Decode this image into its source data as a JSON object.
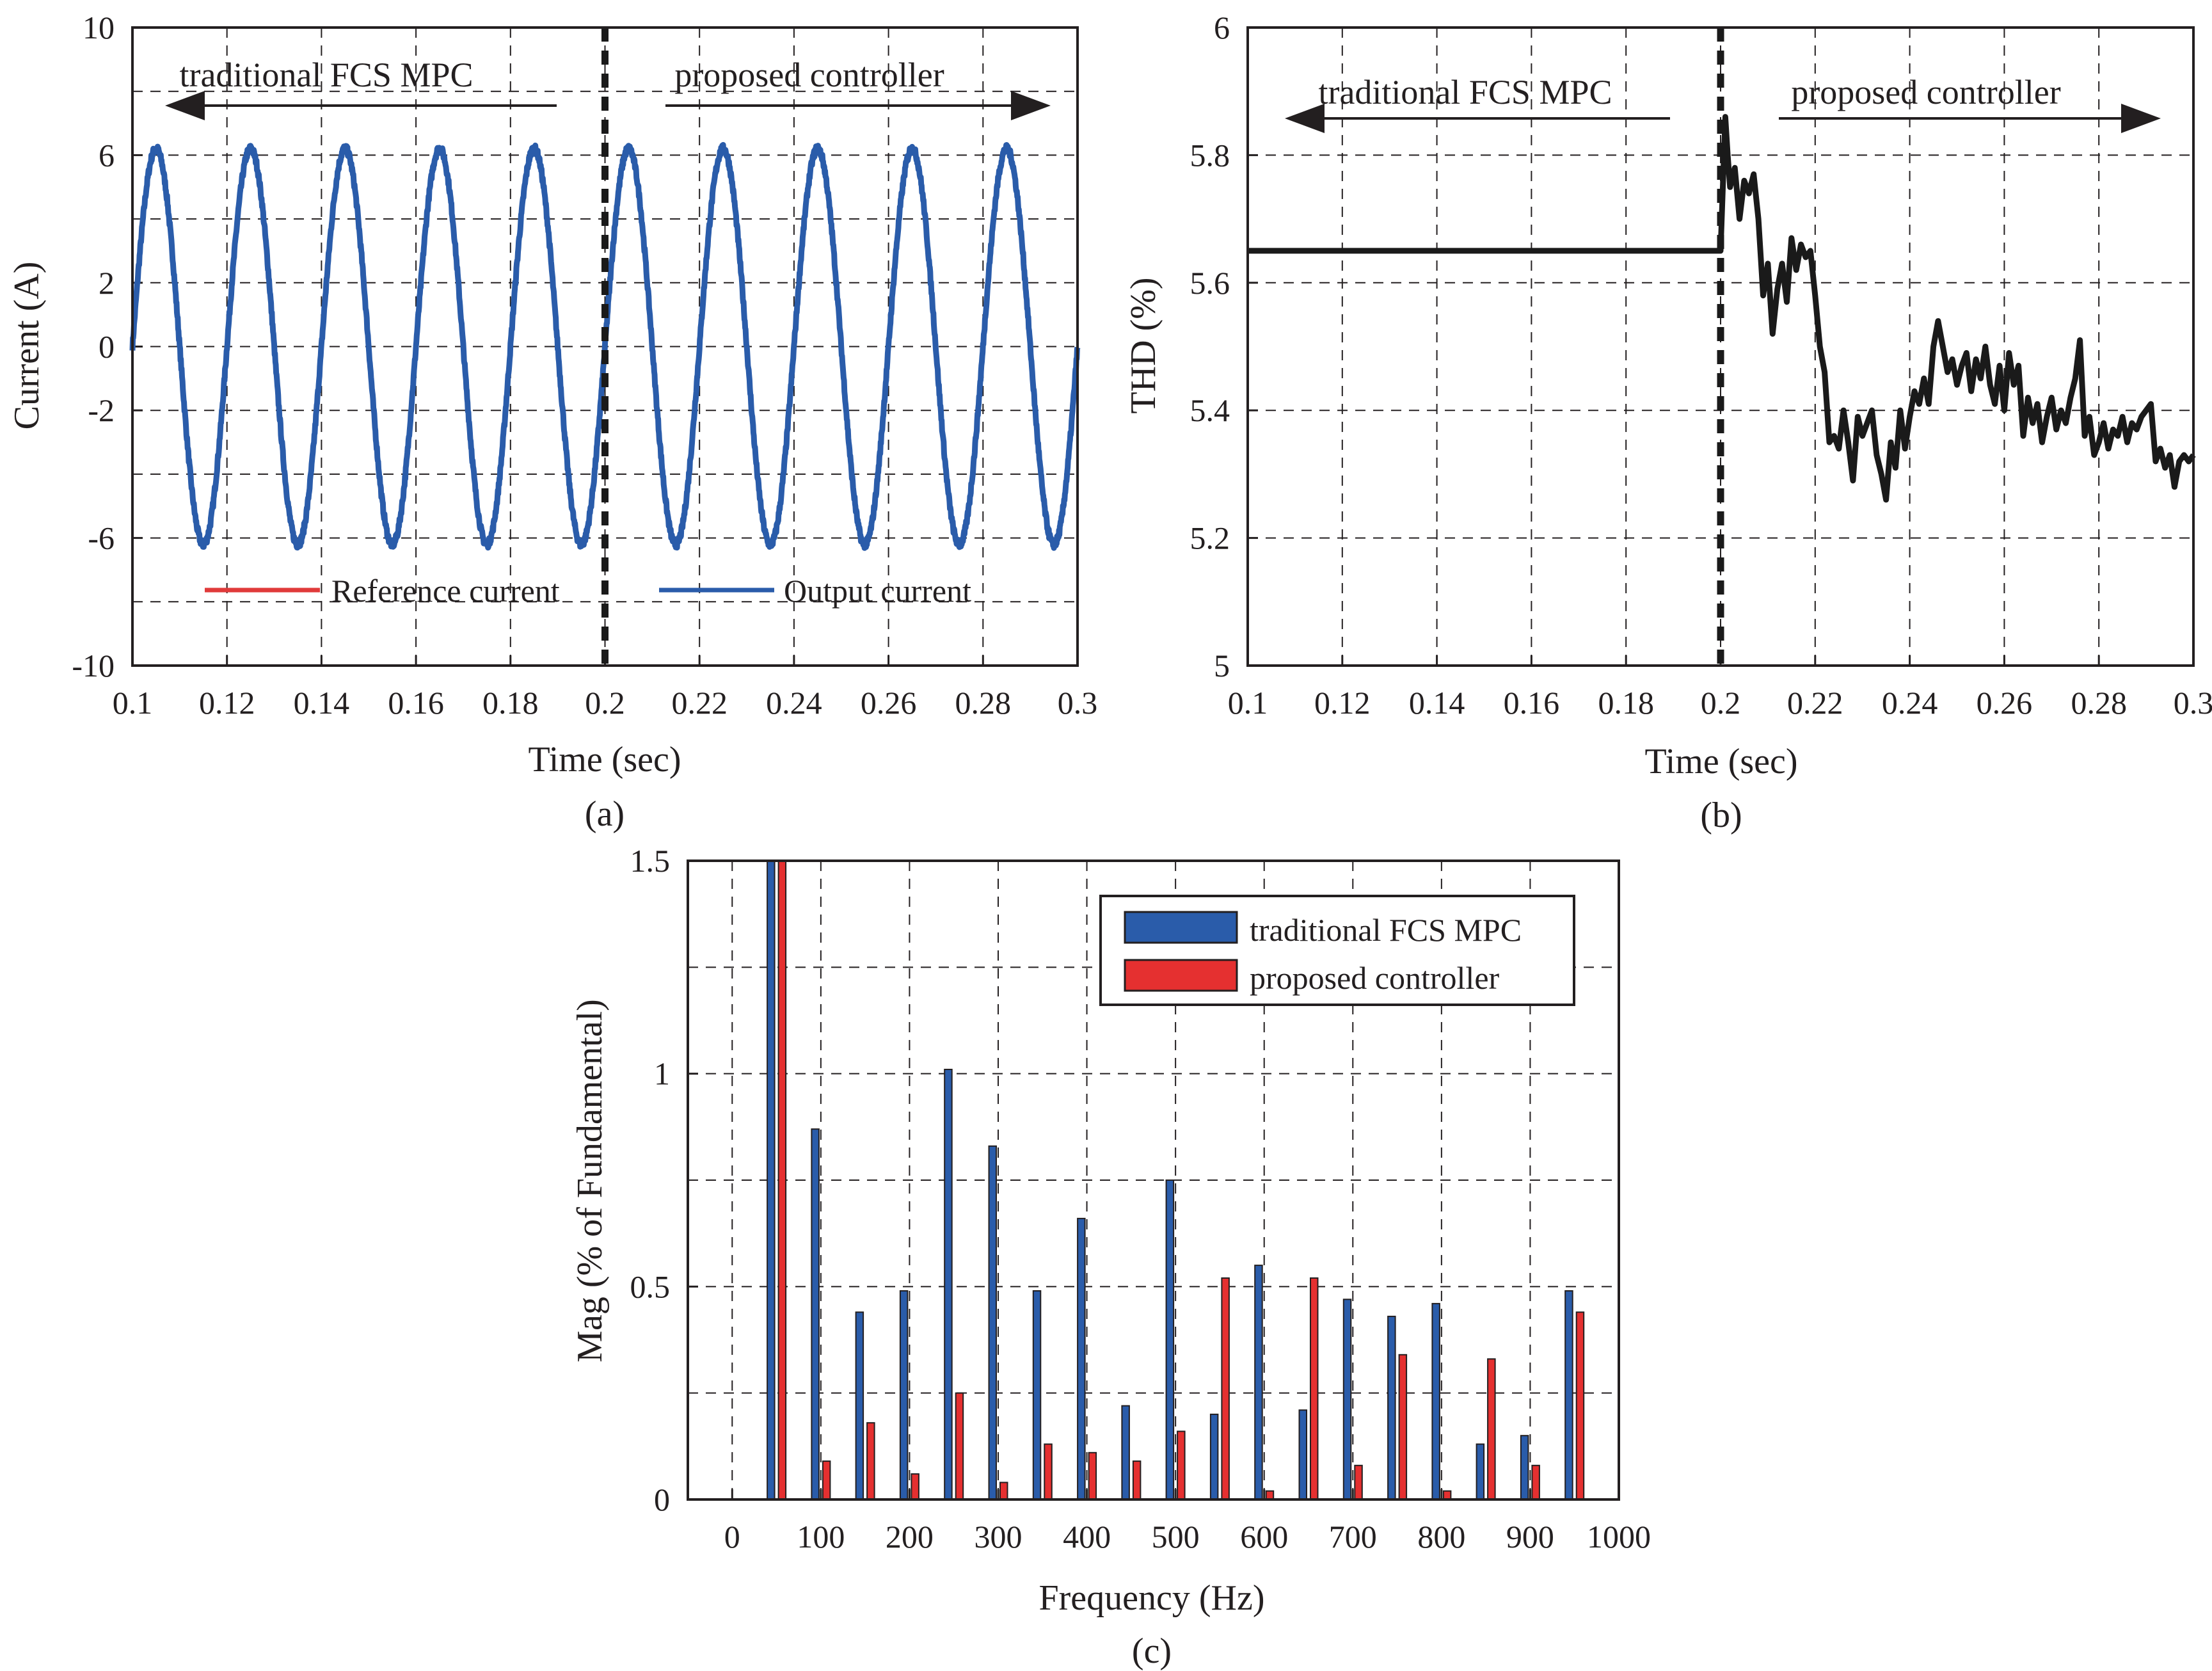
{
  "chart_data": [
    {
      "id": "a",
      "type": "line",
      "caption": "(a)",
      "xlabel": "Time (sec)",
      "ylabel": "Current (A)",
      "xlim": [
        0.1,
        0.3
      ],
      "ylim": [
        -10,
        10
      ],
      "xticks": [
        0.1,
        0.12,
        0.14,
        0.16,
        0.18,
        0.2,
        0.22,
        0.24,
        0.26,
        0.28,
        0.3
      ],
      "xtick_labels": [
        "0.1",
        "0.12",
        "0.14",
        "0.16",
        "0.18",
        "0.2",
        "0.22",
        "0.24",
        "0.26",
        "0.28",
        "0.3"
      ],
      "yticks": [
        -10,
        -6,
        -2,
        0,
        2,
        6,
        10
      ],
      "ytick_labels": [
        "-10",
        "-6",
        "-2",
        "0",
        "2",
        "6",
        "10"
      ],
      "grid": true,
      "divider_x": 0.2,
      "annotations": [
        {
          "text": "traditional FCS MPC",
          "arrow": "left"
        },
        {
          "text": "proposed controller",
          "arrow": "right"
        }
      ],
      "series": [
        {
          "name": "Reference current",
          "color": "#e03a3a",
          "amplitude": 6.1,
          "frequency_hz": 50
        },
        {
          "name": "Output current",
          "color": "#2a5caa",
          "amplitude": 6.2,
          "frequency_hz": 50,
          "ripple": 0.25
        }
      ],
      "legend": [
        "Reference current",
        "Output current"
      ],
      "legend_position": "bottom"
    },
    {
      "id": "b",
      "type": "line",
      "caption": "(b)",
      "xlabel": "Time (sec)",
      "ylabel": "THD (%)",
      "xlim": [
        0.1,
        0.3
      ],
      "ylim": [
        5,
        6
      ],
      "xticks": [
        0.1,
        0.12,
        0.14,
        0.16,
        0.18,
        0.2,
        0.22,
        0.24,
        0.26,
        0.28,
        0.3
      ],
      "xtick_labels": [
        "0.1",
        "0.12",
        "0.14",
        "0.16",
        "0.18",
        "0.2",
        "0.22",
        "0.24",
        "0.26",
        "0.28",
        "0.3"
      ],
      "yticks": [
        5,
        5.2,
        5.4,
        5.6,
        5.8,
        6
      ],
      "ytick_labels": [
        "5",
        "5.2",
        "5.4",
        "5.6",
        "5.8",
        "6"
      ],
      "grid": true,
      "divider_x": 0.2,
      "annotations": [
        {
          "text": "traditional FCS MPC",
          "arrow": "left"
        },
        {
          "text": "proposed controller",
          "arrow": "right"
        }
      ],
      "series": [
        {
          "name": "THD",
          "color": "#1a1a1a",
          "x": [
            0.1,
            0.2,
            0.2,
            0.201,
            0.2015,
            0.202,
            0.203,
            0.204,
            0.205,
            0.206,
            0.207,
            0.208,
            0.209,
            0.21,
            0.211,
            0.212,
            0.213,
            0.214,
            0.215,
            0.216,
            0.217,
            0.218,
            0.219,
            0.22,
            0.221,
            0.222,
            0.223,
            0.224,
            0.225,
            0.226,
            0.227,
            0.228,
            0.229,
            0.23,
            0.231,
            0.232,
            0.233,
            0.234,
            0.235,
            0.236,
            0.237,
            0.238,
            0.239,
            0.24,
            0.241,
            0.242,
            0.243,
            0.244,
            0.245,
            0.246,
            0.247,
            0.248,
            0.249,
            0.25,
            0.251,
            0.252,
            0.253,
            0.254,
            0.255,
            0.256,
            0.257,
            0.258,
            0.259,
            0.26,
            0.261,
            0.262,
            0.263,
            0.264,
            0.265,
            0.266,
            0.267,
            0.268,
            0.269,
            0.27,
            0.271,
            0.272,
            0.273,
            0.274,
            0.275,
            0.276,
            0.277,
            0.278,
            0.279,
            0.28,
            0.281,
            0.282,
            0.283,
            0.284,
            0.285,
            0.286,
            0.287,
            0.288,
            0.289,
            0.29,
            0.291,
            0.292,
            0.293,
            0.294,
            0.295,
            0.296,
            0.297,
            0.298,
            0.299,
            0.3
          ],
          "y": [
            5.65,
            5.65,
            5.65,
            5.86,
            5.8,
            5.75,
            5.78,
            5.7,
            5.76,
            5.74,
            5.77,
            5.7,
            5.58,
            5.63,
            5.52,
            5.59,
            5.63,
            5.57,
            5.67,
            5.62,
            5.66,
            5.64,
            5.65,
            5.58,
            5.5,
            5.46,
            5.35,
            5.36,
            5.34,
            5.4,
            5.35,
            5.29,
            5.39,
            5.36,
            5.38,
            5.4,
            5.33,
            5.3,
            5.26,
            5.35,
            5.31,
            5.4,
            5.34,
            5.39,
            5.43,
            5.41,
            5.45,
            5.41,
            5.5,
            5.54,
            5.5,
            5.46,
            5.48,
            5.44,
            5.47,
            5.49,
            5.43,
            5.48,
            5.45,
            5.5,
            5.44,
            5.41,
            5.47,
            5.4,
            5.49,
            5.44,
            5.47,
            5.36,
            5.42,
            5.38,
            5.41,
            5.35,
            5.39,
            5.42,
            5.37,
            5.4,
            5.38,
            5.42,
            5.45,
            5.51,
            5.36,
            5.39,
            5.33,
            5.35,
            5.38,
            5.34,
            5.37,
            5.36,
            5.39,
            5.35,
            5.38,
            5.37,
            5.39,
            5.4,
            5.41,
            5.32,
            5.34,
            5.31,
            5.33,
            5.28,
            5.32,
            5.33,
            5.32,
            5.33
          ]
        }
      ]
    },
    {
      "id": "c",
      "type": "bar",
      "caption": "(c)",
      "xlabel": "Frequency (Hz)",
      "ylabel": "Mag (% of Fundamental)",
      "xlim": [
        -50,
        1000
      ],
      "ylim": [
        0,
        1.5
      ],
      "xticks": [
        0,
        100,
        200,
        300,
        400,
        500,
        600,
        700,
        800,
        900,
        1000
      ],
      "xtick_labels": [
        "0",
        "100",
        "200",
        "300",
        "400",
        "500",
        "600",
        "700",
        "800",
        "900",
        "1000"
      ],
      "yticks": [
        0,
        0.5,
        1,
        1.5
      ],
      "ytick_labels": [
        "0",
        "0.5",
        "1",
        "1.5"
      ],
      "grid": true,
      "legend_position": "top-right",
      "categories": [
        50,
        100,
        150,
        200,
        250,
        300,
        350,
        400,
        450,
        500,
        550,
        600,
        650,
        700,
        750,
        800,
        850,
        900,
        950
      ],
      "series": [
        {
          "name": "traditional FCS MPC",
          "color": "#2a5caa",
          "values": [
            1.5,
            0.87,
            0.44,
            0.49,
            1.01,
            0.83,
            0.49,
            0.66,
            0.22,
            0.75,
            0.2,
            0.55,
            0.21,
            0.47,
            0.43,
            0.46,
            0.13,
            0.15,
            0.49
          ]
        },
        {
          "name": "proposed controller",
          "color": "#e53030",
          "values": [
            1.5,
            0.09,
            0.18,
            0.06,
            0.25,
            0.04,
            0.13,
            0.11,
            0.09,
            0.16,
            0.52,
            0.02,
            0.52,
            0.08,
            0.34,
            0.02,
            0.33,
            0.08,
            0.44
          ]
        }
      ]
    }
  ]
}
